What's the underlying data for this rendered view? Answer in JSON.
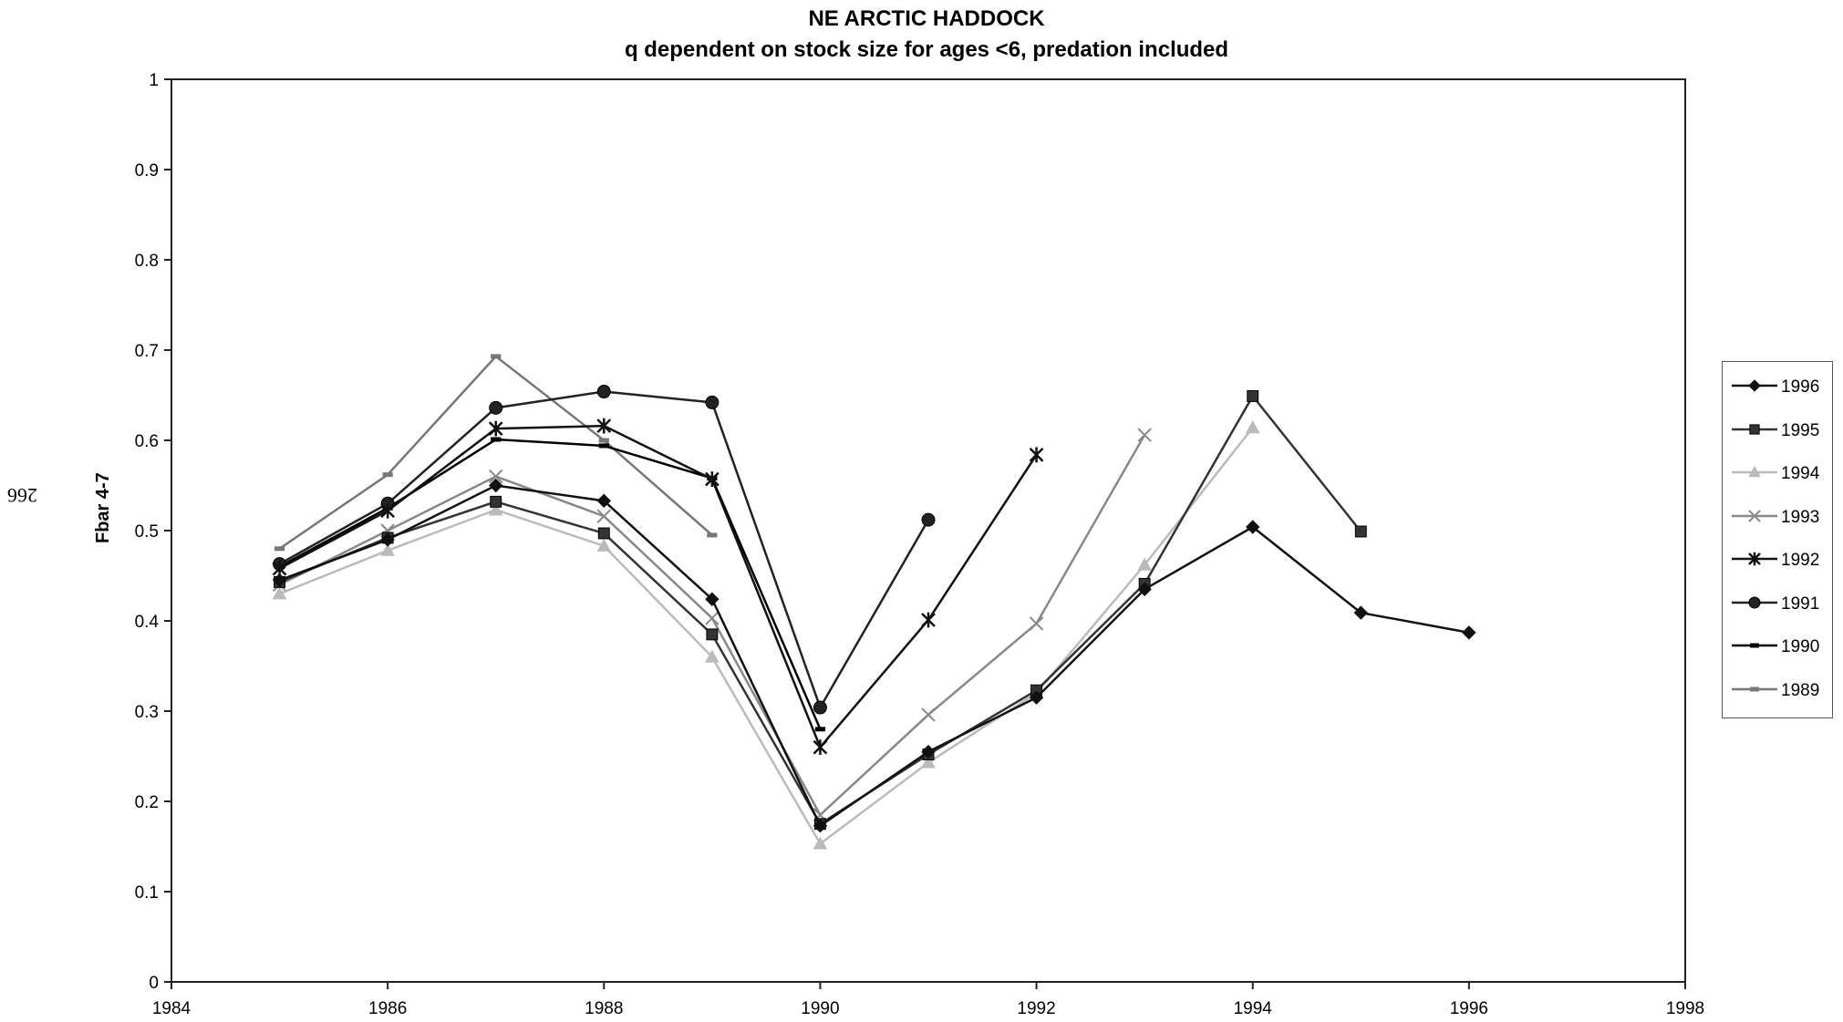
{
  "page": {
    "page_number": "266"
  },
  "chart_data": {
    "type": "line",
    "title": "NE ARCTIC HADDOCK",
    "subtitle": "q dependent on stock size for ages <6, predation included",
    "xlabel": "",
    "ylabel": "Fbar 4-7",
    "xlim": [
      1984,
      1998
    ],
    "ylim": [
      0,
      1
    ],
    "x_ticks": [
      "1984",
      "1986",
      "1988",
      "1990",
      "1992",
      "1994",
      "1996",
      "1998"
    ],
    "y_ticks": [
      "0",
      "0.1",
      "0.2",
      "0.3",
      "0.4",
      "0.5",
      "0.6",
      "0.7",
      "0.8",
      "0.9",
      "1"
    ],
    "grid": false,
    "legend_position": "right",
    "series": [
      {
        "name": "1996",
        "marker": "diamond",
        "color": "#111111",
        "x": [
          1985,
          1986,
          1987,
          1988,
          1989,
          1990,
          1991,
          1992,
          1993,
          1994,
          1995,
          1996
        ],
        "y": [
          0.445,
          0.49,
          0.55,
          0.533,
          0.424,
          0.173,
          0.255,
          0.315,
          0.435,
          0.504,
          0.409,
          0.387
        ]
      },
      {
        "name": "1995",
        "marker": "square",
        "color": "#333333",
        "x": [
          1985,
          1986,
          1987,
          1988,
          1989,
          1990,
          1991,
          1992,
          1993,
          1994,
          1995
        ],
        "y": [
          0.443,
          0.492,
          0.532,
          0.497,
          0.385,
          0.175,
          0.252,
          0.323,
          0.441,
          0.649,
          0.499
        ]
      },
      {
        "name": "1994",
        "marker": "triangle",
        "color": "#bbbbbb",
        "x": [
          1985,
          1986,
          1987,
          1988,
          1989,
          1990,
          1991,
          1992,
          1993,
          1994
        ],
        "y": [
          0.43,
          0.478,
          0.523,
          0.483,
          0.36,
          0.153,
          0.243,
          0.32,
          0.462,
          0.614
        ]
      },
      {
        "name": "1993",
        "marker": "x",
        "color": "#888888",
        "x": [
          1985,
          1986,
          1987,
          1988,
          1989,
          1990,
          1991,
          1992,
          1993
        ],
        "y": [
          0.44,
          0.5,
          0.56,
          0.516,
          0.403,
          0.185,
          0.296,
          0.397,
          0.606
        ]
      },
      {
        "name": "1992",
        "marker": "star",
        "color": "#111111",
        "x": [
          1985,
          1986,
          1987,
          1988,
          1989,
          1990,
          1991,
          1992
        ],
        "y": [
          0.458,
          0.522,
          0.613,
          0.616,
          0.557,
          0.26,
          0.401,
          0.584
        ]
      },
      {
        "name": "1991",
        "marker": "circle",
        "color": "#222222",
        "x": [
          1985,
          1986,
          1987,
          1988,
          1989,
          1990,
          1991
        ],
        "y": [
          0.463,
          0.53,
          0.636,
          0.654,
          0.642,
          0.304,
          0.512
        ]
      },
      {
        "name": "1990",
        "marker": "dash",
        "color": "#000000",
        "x": [
          1985,
          1986,
          1987,
          1988,
          1989,
          1990
        ],
        "y": [
          0.46,
          0.525,
          0.601,
          0.594,
          0.558,
          0.28
        ]
      },
      {
        "name": "1989",
        "marker": "dash",
        "color": "#777777",
        "x": [
          1985,
          1986,
          1987,
          1988,
          1989
        ],
        "y": [
          0.48,
          0.562,
          0.693,
          0.6,
          0.495
        ]
      }
    ]
  }
}
